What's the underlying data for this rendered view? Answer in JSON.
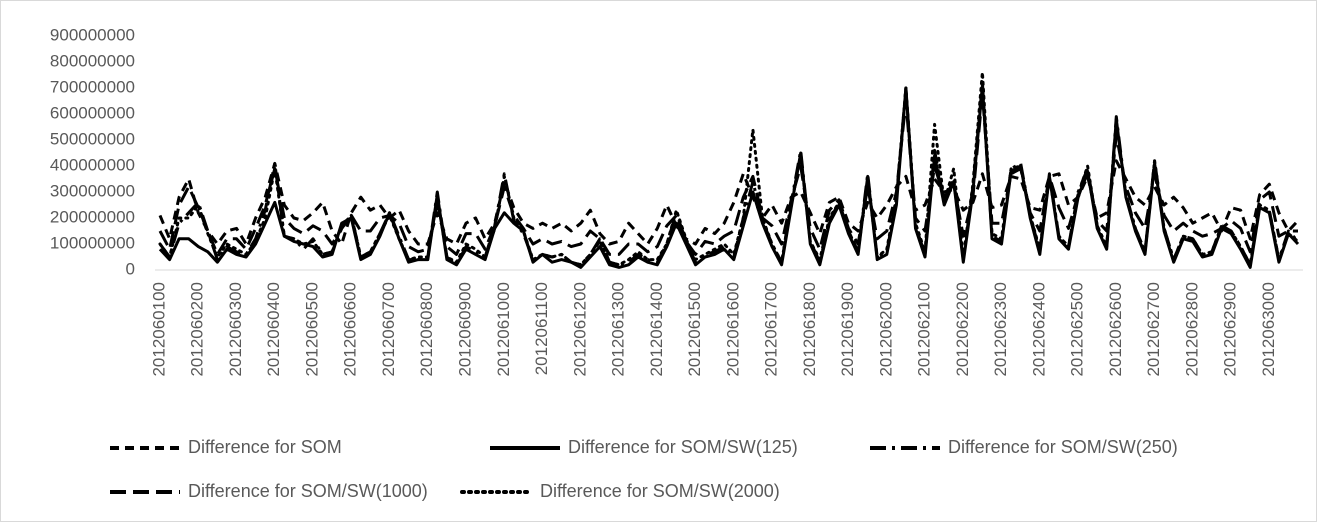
{
  "chart_data": {
    "type": "line",
    "categories": [
      "2012060100",
      null,
      null,
      null,
      "2012060200",
      null,
      null,
      null,
      "2012060300",
      null,
      null,
      null,
      "2012060400",
      null,
      null,
      null,
      "2012060500",
      null,
      null,
      null,
      "2012060600",
      null,
      null,
      null,
      "2012060700",
      null,
      null,
      null,
      "2012060800",
      null,
      null,
      null,
      "2012060900",
      null,
      null,
      null,
      "2012061000",
      null,
      null,
      null,
      "2012061100",
      null,
      null,
      null,
      "2012061200",
      null,
      null,
      null,
      "2012061300",
      null,
      null,
      null,
      "2012061400",
      null,
      null,
      null,
      "2012061500",
      null,
      null,
      null,
      "2012061600",
      null,
      null,
      null,
      "2012061700",
      null,
      null,
      null,
      "2012061800",
      null,
      null,
      null,
      "2012061900",
      null,
      null,
      null,
      "2012062000",
      null,
      null,
      null,
      "2012062100",
      null,
      null,
      null,
      "2012062200",
      null,
      null,
      null,
      "2012062300",
      null,
      null,
      null,
      "2012062400",
      null,
      null,
      null,
      "2012062500",
      null,
      null,
      null,
      "2012062600",
      null,
      null,
      null,
      "2012062700",
      null,
      null,
      null,
      "2012062800",
      null,
      null,
      null,
      "2012062900",
      null,
      null,
      null,
      "2012063000",
      null,
      null,
      null
    ],
    "series": [
      {
        "name": "Difference for SOM",
        "color": "#000000",
        "line_style": "dashed",
        "values": [
          210000000.0,
          120000000.0,
          280000000.0,
          350000000.0,
          220000000.0,
          150000000.0,
          100000000.0,
          150000000.0,
          160000000.0,
          100000000.0,
          200000000.0,
          280000000.0,
          410000000.0,
          250000000.0,
          200000000.0,
          190000000.0,
          220000000.0,
          260000000.0,
          150000000.0,
          100000000.0,
          220000000.0,
          280000000.0,
          230000000.0,
          250000000.0,
          200000000.0,
          230000000.0,
          150000000.0,
          100000000.0,
          100000000.0,
          220000000.0,
          120000000.0,
          100000000.0,
          180000000.0,
          200000000.0,
          120000000.0,
          180000000.0,
          340000000.0,
          240000000.0,
          180000000.0,
          160000000.0,
          180000000.0,
          160000000.0,
          180000000.0,
          150000000.0,
          180000000.0,
          230000000.0,
          140000000.0,
          100000000.0,
          110000000.0,
          180000000.0,
          140000000.0,
          100000000.0,
          160000000.0,
          250000000.0,
          170000000.0,
          120000000.0,
          100000000.0,
          160000000.0,
          140000000.0,
          180000000.0,
          260000000.0,
          370000000.0,
          280000000.0,
          200000000.0,
          250000000.0,
          180000000.0,
          280000000.0,
          300000000.0,
          220000000.0,
          140000000.0,
          260000000.0,
          280000000.0,
          180000000.0,
          150000000.0,
          260000000.0,
          200000000.0,
          250000000.0,
          320000000.0,
          360000000.0,
          230000000.0,
          250000000.0,
          350000000.0,
          300000000.0,
          310000000.0,
          230000000.0,
          260000000.0,
          370000000.0,
          240000000.0,
          250000000.0,
          360000000.0,
          350000000.0,
          240000000.0,
          230000000.0,
          360000000.0,
          370000000.0,
          250000000.0,
          280000000.0,
          360000000.0,
          200000000.0,
          220000000.0,
          420000000.0,
          350000000.0,
          280000000.0,
          250000000.0,
          320000000.0,
          250000000.0,
          280000000.0,
          240000000.0,
          180000000.0,
          200000000.0,
          220000000.0,
          150000000.0,
          240000000.0,
          230000000.0,
          120000000.0,
          290000000.0,
          330000000.0,
          220000000.0,
          150000000.0,
          190000000.0
        ]
      },
      {
        "name": "Difference for SOM/SW(125)",
        "color": "#000000",
        "line_style": "solid",
        "values": [
          80000000.0,
          40000000.0,
          120000000.0,
          120000000.0,
          90000000.0,
          70000000.0,
          30000000.0,
          80000000.0,
          60000000.0,
          50000000.0,
          100000000.0,
          180000000.0,
          260000000.0,
          130000000.0,
          110000000.0,
          100000000.0,
          90000000.0,
          50000000.0,
          60000000.0,
          180000000.0,
          200000000.0,
          40000000.0,
          60000000.0,
          130000000.0,
          220000000.0,
          120000000.0,
          30000000.0,
          40000000.0,
          40000000.0,
          290000000.0,
          40000000.0,
          20000000.0,
          80000000.0,
          60000000.0,
          40000000.0,
          160000000.0,
          220000000.0,
          180000000.0,
          150000000.0,
          30000000.0,
          60000000.0,
          30000000.0,
          40000000.0,
          30000000.0,
          10000000.0,
          50000000.0,
          90000000.0,
          20000000.0,
          10000000.0,
          20000000.0,
          50000000.0,
          30000000.0,
          20000000.0,
          90000000.0,
          180000000.0,
          100000000.0,
          20000000.0,
          50000000.0,
          60000000.0,
          80000000.0,
          40000000.0,
          170000000.0,
          300000000.0,
          180000000.0,
          90000000.0,
          20000000.0,
          240000000.0,
          450000000.0,
          100000000.0,
          20000000.0,
          180000000.0,
          250000000.0,
          140000000.0,
          60000000.0,
          360000000.0,
          40000000.0,
          60000000.0,
          250000000.0,
          700000000.0,
          160000000.0,
          50000000.0,
          440000000.0,
          250000000.0,
          340000000.0,
          30000000.0,
          300000000.0,
          710000000.0,
          120000000.0,
          100000000.0,
          380000000.0,
          400000000.0,
          200000000.0,
          60000000.0,
          360000000.0,
          120000000.0,
          80000000.0,
          280000000.0,
          380000000.0,
          160000000.0,
          80000000.0,
          580000000.0,
          280000000.0,
          150000000.0,
          60000000.0,
          410000000.0,
          150000000.0,
          30000000.0,
          120000000.0,
          110000000.0,
          50000000.0,
          60000000.0,
          160000000.0,
          140000000.0,
          80000000.0,
          10000000.0,
          240000000.0,
          220000000.0,
          30000000.0,
          140000000.0,
          100000000.0
        ]
      },
      {
        "name": "Difference for SOM/SW(250)",
        "color": "#000000",
        "line_style": "long-dash-dot",
        "values": [
          100000000.0,
          50000000.0,
          180000000.0,
          220000000.0,
          260000000.0,
          150000000.0,
          40000000.0,
          90000000.0,
          70000000.0,
          60000000.0,
          120000000.0,
          230000000.0,
          410000000.0,
          130000000.0,
          120000000.0,
          80000000.0,
          120000000.0,
          60000000.0,
          70000000.0,
          160000000.0,
          210000000.0,
          50000000.0,
          70000000.0,
          140000000.0,
          220000000.0,
          130000000.0,
          40000000.0,
          40000000.0,
          50000000.0,
          300000000.0,
          50000000.0,
          20000000.0,
          90000000.0,
          70000000.0,
          50000000.0,
          170000000.0,
          370000000.0,
          190000000.0,
          140000000.0,
          40000000.0,
          60000000.0,
          50000000.0,
          60000000.0,
          30000000.0,
          20000000.0,
          60000000.0,
          120000000.0,
          30000000.0,
          20000000.0,
          30000000.0,
          60000000.0,
          40000000.0,
          30000000.0,
          100000000.0,
          220000000.0,
          110000000.0,
          30000000.0,
          60000000.0,
          70000000.0,
          90000000.0,
          50000000.0,
          200000000.0,
          340000000.0,
          190000000.0,
          100000000.0,
          30000000.0,
          260000000.0,
          460000000.0,
          110000000.0,
          30000000.0,
          190000000.0,
          260000000.0,
          150000000.0,
          70000000.0,
          370000000.0,
          50000000.0,
          70000000.0,
          270000000.0,
          700000000.0,
          170000000.0,
          60000000.0,
          460000000.0,
          260000000.0,
          350000000.0,
          40000000.0,
          320000000.0,
          720000000.0,
          130000000.0,
          110000000.0,
          390000000.0,
          410000000.0,
          210000000.0,
          70000000.0,
          370000000.0,
          130000000.0,
          90000000.0,
          300000000.0,
          390000000.0,
          170000000.0,
          90000000.0,
          590000000.0,
          290000000.0,
          160000000.0,
          70000000.0,
          420000000.0,
          160000000.0,
          40000000.0,
          130000000.0,
          120000000.0,
          60000000.0,
          70000000.0,
          170000000.0,
          150000000.0,
          90000000.0,
          20000000.0,
          250000000.0,
          230000000.0,
          40000000.0,
          150000000.0,
          110000000.0
        ]
      },
      {
        "name": "Difference for SOM/SW(1000)",
        "color": "#000000",
        "line_style": "long-dash",
        "values": [
          150000000.0,
          80000000.0,
          250000000.0,
          320000000.0,
          240000000.0,
          150000000.0,
          60000000.0,
          120000000.0,
          120000000.0,
          80000000.0,
          160000000.0,
          250000000.0,
          390000000.0,
          200000000.0,
          160000000.0,
          140000000.0,
          170000000.0,
          150000000.0,
          100000000.0,
          160000000.0,
          210000000.0,
          150000000.0,
          150000000.0,
          200000000.0,
          210000000.0,
          180000000.0,
          90000000.0,
          70000000.0,
          80000000.0,
          260000000.0,
          90000000.0,
          60000000.0,
          140000000.0,
          140000000.0,
          80000000.0,
          170000000.0,
          320000000.0,
          210000000.0,
          160000000.0,
          100000000.0,
          120000000.0,
          100000000.0,
          110000000.0,
          90000000.0,
          100000000.0,
          150000000.0,
          120000000.0,
          60000000.0,
          60000000.0,
          100000000.0,
          100000000.0,
          70000000.0,
          90000000.0,
          170000000.0,
          210000000.0,
          110000000.0,
          60000000.0,
          110000000.0,
          100000000.0,
          130000000.0,
          150000000.0,
          280000000.0,
          360000000.0,
          200000000.0,
          170000000.0,
          100000000.0,
          270000000.0,
          400000000.0,
          160000000.0,
          80000000.0,
          230000000.0,
          270000000.0,
          160000000.0,
          100000000.0,
          320000000.0,
          120000000.0,
          150000000.0,
          300000000.0,
          650000000.0,
          200000000.0,
          150000000.0,
          400000000.0,
          280000000.0,
          330000000.0,
          130000000.0,
          280000000.0,
          680000000.0,
          180000000.0,
          180000000.0,
          370000000.0,
          390000000.0,
          220000000.0,
          150000000.0,
          360000000.0,
          240000000.0,
          160000000.0,
          290000000.0,
          370000000.0,
          190000000.0,
          150000000.0,
          520000000.0,
          320000000.0,
          220000000.0,
          160000000.0,
          370000000.0,
          210000000.0,
          150000000.0,
          180000000.0,
          150000000.0,
          130000000.0,
          140000000.0,
          160000000.0,
          190000000.0,
          160000000.0,
          70000000.0,
          270000000.0,
          300000000.0,
          130000000.0,
          150000000.0,
          150000000.0
        ]
      },
      {
        "name": "Difference for SOM/SW(2000)",
        "color": "#000000",
        "line_style": "dotted",
        "values": [
          100000000.0,
          50000000.0,
          200000000.0,
          200000000.0,
          250000000.0,
          140000000.0,
          50000000.0,
          100000000.0,
          80000000.0,
          60000000.0,
          110000000.0,
          200000000.0,
          390000000.0,
          130000000.0,
          120000000.0,
          100000000.0,
          110000000.0,
          60000000.0,
          70000000.0,
          170000000.0,
          210000000.0,
          50000000.0,
          70000000.0,
          140000000.0,
          210000000.0,
          120000000.0,
          40000000.0,
          50000000.0,
          50000000.0,
          280000000.0,
          50000000.0,
          30000000.0,
          100000000.0,
          80000000.0,
          50000000.0,
          160000000.0,
          360000000.0,
          200000000.0,
          150000000.0,
          40000000.0,
          60000000.0,
          50000000.0,
          60000000.0,
          30000000.0,
          20000000.0,
          60000000.0,
          110000000.0,
          30000000.0,
          20000000.0,
          40000000.0,
          70000000.0,
          40000000.0,
          40000000.0,
          100000000.0,
          230000000.0,
          120000000.0,
          40000000.0,
          60000000.0,
          80000000.0,
          100000000.0,
          60000000.0,
          200000000.0,
          540000000.0,
          200000000.0,
          100000000.0,
          30000000.0,
          250000000.0,
          440000000.0,
          110000000.0,
          40000000.0,
          200000000.0,
          260000000.0,
          150000000.0,
          70000000.0,
          350000000.0,
          50000000.0,
          80000000.0,
          280000000.0,
          700000000.0,
          180000000.0,
          70000000.0,
          560000000.0,
          260000000.0,
          390000000.0,
          50000000.0,
          330000000.0,
          760000000.0,
          140000000.0,
          120000000.0,
          390000000.0,
          400000000.0,
          210000000.0,
          80000000.0,
          360000000.0,
          130000000.0,
          90000000.0,
          290000000.0,
          400000000.0,
          170000000.0,
          90000000.0,
          570000000.0,
          290000000.0,
          160000000.0,
          70000000.0,
          420000000.0,
          160000000.0,
          40000000.0,
          130000000.0,
          120000000.0,
          60000000.0,
          70000000.0,
          170000000.0,
          150000000.0,
          90000000.0,
          20000000.0,
          250000000.0,
          230000000.0,
          40000000.0,
          140000000.0,
          110000000.0
        ]
      }
    ],
    "ylim": [
      0,
      900000000
    ],
    "yticks": [
      0,
      100000000,
      200000000,
      300000000,
      400000000,
      500000000,
      600000000,
      700000000,
      800000000,
      900000000
    ],
    "grid": false,
    "legend": "bottom"
  }
}
